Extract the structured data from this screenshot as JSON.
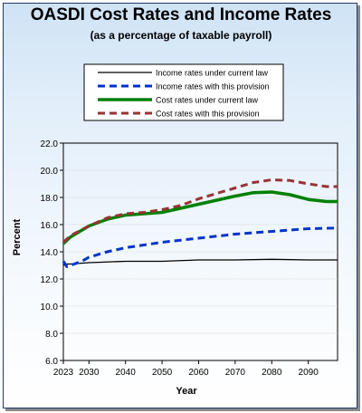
{
  "chart_data": {
    "type": "line",
    "title": "OASDI Cost Rates and Income Rates",
    "subtitle": "(as a percentage of taxable payroll)",
    "xlabel": "Year",
    "ylabel": "Percent",
    "xlim": [
      2023,
      2098
    ],
    "ylim": [
      6.0,
      22.0
    ],
    "xticks": [
      "2023",
      "2030",
      "2040",
      "2050",
      "2060",
      "2070",
      "2080",
      "2090"
    ],
    "yticks": [
      "6.0",
      "8.0",
      "10.0",
      "12.0",
      "14.0",
      "16.0",
      "18.0",
      "20.0",
      "22.0"
    ],
    "legend_position": "top",
    "series": [
      {
        "name": "Income rates under current law",
        "color": "#000000",
        "style": "solid-thin",
        "x": [
          2023,
          2024,
          2025,
          2030,
          2040,
          2050,
          2060,
          2070,
          2080,
          2090,
          2098
        ],
        "values": [
          13.0,
          13.1,
          13.1,
          13.2,
          13.3,
          13.3,
          13.4,
          13.4,
          13.45,
          13.4,
          13.4
        ]
      },
      {
        "name": "Income rates with this provision",
        "color": "#0033cc",
        "style": "dashed",
        "x": [
          2023,
          2024,
          2025,
          2028,
          2030,
          2035,
          2040,
          2050,
          2060,
          2070,
          2080,
          2090,
          2098
        ],
        "values": [
          13.3,
          12.9,
          13.0,
          13.3,
          13.6,
          14.0,
          14.3,
          14.7,
          15.0,
          15.3,
          15.5,
          15.7,
          15.75
        ]
      },
      {
        "name": "Cost rates under current law",
        "color": "#008000",
        "style": "solid-thick",
        "x": [
          2023,
          2025,
          2030,
          2035,
          2040,
          2045,
          2050,
          2055,
          2060,
          2065,
          2070,
          2075,
          2080,
          2085,
          2090,
          2095,
          2098
        ],
        "values": [
          14.6,
          15.1,
          15.9,
          16.4,
          16.7,
          16.8,
          16.9,
          17.2,
          17.5,
          17.8,
          18.1,
          18.35,
          18.4,
          18.2,
          17.85,
          17.7,
          17.7
        ]
      },
      {
        "name": "Cost rates with this provision",
        "color": "#993333",
        "style": "dashed",
        "x": [
          2023,
          2025,
          2030,
          2035,
          2040,
          2045,
          2050,
          2055,
          2060,
          2065,
          2070,
          2075,
          2080,
          2085,
          2090,
          2095,
          2098
        ],
        "values": [
          14.7,
          15.2,
          15.9,
          16.5,
          16.8,
          16.9,
          17.1,
          17.4,
          17.9,
          18.3,
          18.7,
          19.1,
          19.3,
          19.25,
          19.0,
          18.8,
          18.8
        ]
      }
    ]
  }
}
